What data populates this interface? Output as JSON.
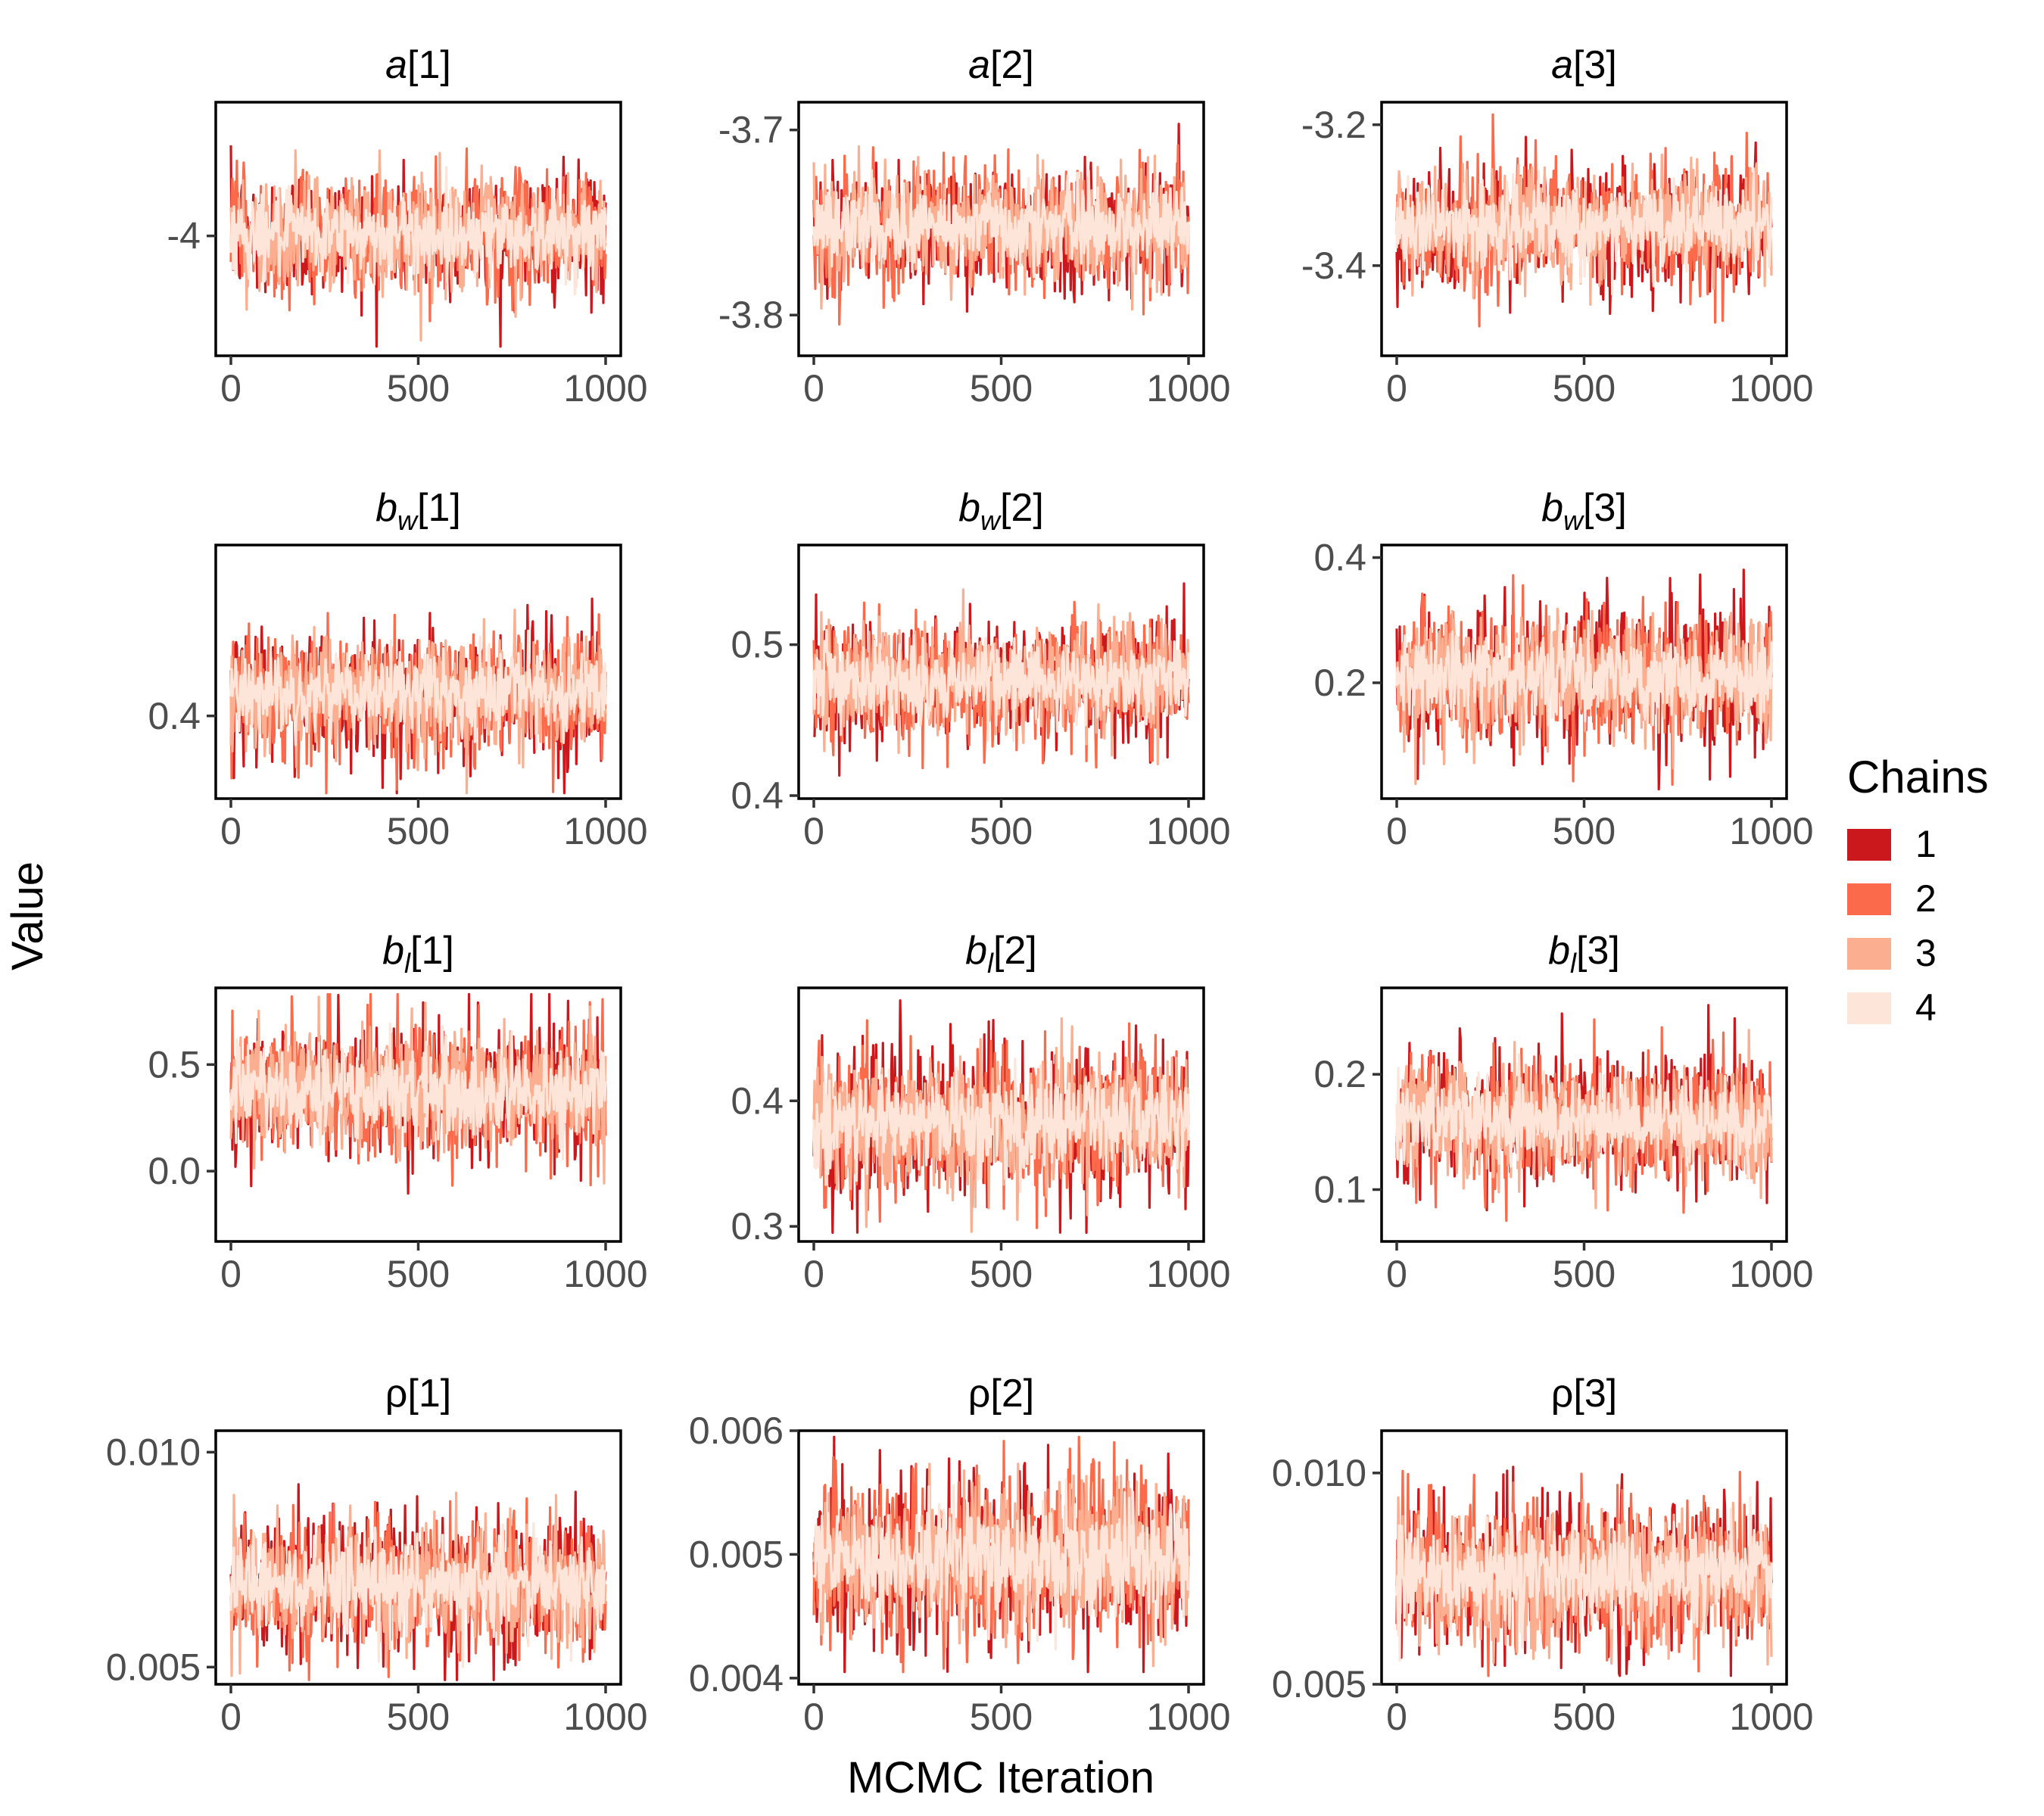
{
  "chart_data": {
    "type": "line",
    "xlabel": "MCMC Iteration",
    "ylabel": "Value",
    "legend": {
      "title": "Chains",
      "placement": "right",
      "entries": [
        {
          "label": "1",
          "color": "#CB181D"
        },
        {
          "label": "2",
          "color": "#FB6A4A"
        },
        {
          "label": "3",
          "color": "#FCAE91"
        },
        {
          "label": "4",
          "color": "#FEE5D9"
        }
      ]
    },
    "x_range": [
      0,
      1000
    ],
    "x_ticks": [
      0,
      500,
      1000
    ],
    "x_tick_labels": [
      "0",
      "500",
      "1000"
    ],
    "panels": [
      {
        "title": {
          "base": "a",
          "sub": "",
          "idx": "[1]",
          "italic": true
        },
        "ylim": [
          -4.26,
          -3.71
        ],
        "y_ticks": [
          -4
        ],
        "y_tick_labels": [
          "-4"
        ],
        "center": -3.995,
        "spread": 0.06,
        "extremes": [
          -4.24,
          -3.73
        ]
      },
      {
        "title": {
          "base": "a",
          "sub": "",
          "idx": "[2]",
          "italic": true
        },
        "ylim": [
          -3.822,
          -3.685
        ],
        "y_ticks": [
          -3.7,
          -3.8
        ],
        "y_tick_labels": [
          "-3.7",
          "-3.8"
        ],
        "center": -3.752,
        "spread": 0.015,
        "extremes": [
          -3.815,
          -3.691
        ]
      },
      {
        "title": {
          "base": "a",
          "sub": "",
          "idx": "[3]",
          "italic": true
        },
        "ylim": [
          -3.528,
          -3.168
        ],
        "y_ticks": [
          -3.2,
          -3.4
        ],
        "y_tick_labels": [
          "-3.2",
          "-3.4"
        ],
        "center": -3.345,
        "spread": 0.04,
        "extremes": [
          -3.51,
          -3.185
        ]
      },
      {
        "title": {
          "base": "b",
          "sub": "w",
          "idx": "[1]",
          "italic": true
        },
        "ylim": [
          0.325,
          0.555
        ],
        "y_ticks": [
          0.4
        ],
        "y_tick_labels": [
          "0.4"
        ],
        "center": 0.42,
        "spread": 0.025,
        "extremes": [
          0.33,
          0.54
        ]
      },
      {
        "title": {
          "base": "b",
          "sub": "w",
          "idx": "[2]",
          "italic": true
        },
        "ylim": [
          0.398,
          0.566
        ],
        "y_ticks": [
          0.5,
          0.4
        ],
        "y_tick_labels": [
          "0.5",
          "0.4"
        ],
        "center": 0.477,
        "spread": 0.018,
        "extremes": [
          0.405,
          0.562
        ]
      },
      {
        "title": {
          "base": "b",
          "sub": "w",
          "idx": "[3]",
          "italic": true
        },
        "ylim": [
          0.015,
          0.42
        ],
        "y_ticks": [
          0.4,
          0.2
        ],
        "y_tick_labels": [
          "0.4",
          "0.2"
        ],
        "center": 0.21,
        "spread": 0.05,
        "extremes": [
          0.03,
          0.4
        ]
      },
      {
        "title": {
          "base": "b",
          "sub": "l",
          "idx": "[1]",
          "italic": true
        },
        "ylim": [
          -0.33,
          0.86
        ],
        "y_ticks": [
          0.5,
          0.0
        ],
        "y_tick_labels": [
          "0.5",
          "0.0"
        ],
        "center": 0.375,
        "spread": 0.14,
        "extremes": [
          -0.3,
          0.83
        ]
      },
      {
        "title": {
          "base": "b",
          "sub": "l",
          "idx": "[2]",
          "italic": true
        },
        "ylim": [
          0.288,
          0.49
        ],
        "y_ticks": [
          0.4,
          0.3
        ],
        "y_tick_labels": [
          "0.4",
          "0.3"
        ],
        "center": 0.383,
        "spread": 0.027,
        "extremes": [
          0.295,
          0.48
        ]
      },
      {
        "title": {
          "base": "b",
          "sub": "l",
          "idx": "[3]",
          "italic": true
        },
        "ylim": [
          0.055,
          0.275
        ],
        "y_ticks": [
          0.2,
          0.1
        ],
        "y_tick_labels": [
          "0.2",
          "0.1"
        ],
        "center": 0.16,
        "spread": 0.025,
        "extremes": [
          0.06,
          0.26
        ]
      },
      {
        "title": {
          "base": "ρ",
          "sub": "",
          "idx": "[1]",
          "italic": false
        },
        "ylim": [
          0.0046,
          0.0105
        ],
        "y_ticks": [
          0.01,
          0.005
        ],
        "y_tick_labels": [
          "0.010",
          "0.005"
        ],
        "center": 0.00695,
        "spread": 0.0007,
        "extremes": [
          0.0047,
          0.0102
        ]
      },
      {
        "title": {
          "base": "ρ",
          "sub": "",
          "idx": "[2]",
          "italic": false
        },
        "ylim": [
          0.00395,
          0.006
        ],
        "y_ticks": [
          0.006,
          0.005,
          0.004
        ],
        "y_tick_labels": [
          "0.006",
          "0.005",
          "0.004"
        ],
        "center": 0.00497,
        "spread": 0.0003,
        "extremes": [
          0.00405,
          0.00595
        ]
      },
      {
        "title": {
          "base": "ρ",
          "sub": "",
          "idx": "[3]",
          "italic": false
        },
        "ylim": [
          0.005,
          0.011
        ],
        "y_ticks": [
          0.01,
          0.005
        ],
        "y_tick_labels": [
          "0.010",
          "0.005"
        ],
        "center": 0.0076,
        "spread": 0.0008,
        "extremes": [
          0.0052,
          0.0108
        ]
      }
    ]
  }
}
